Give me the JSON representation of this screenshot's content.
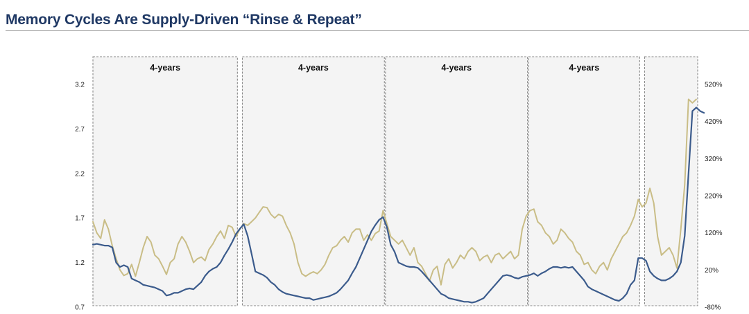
{
  "title": "Memory Cycles Are Supply-Driven “Rinse & Repeat”",
  "colors": {
    "title": "#1f3864",
    "navy_series": "#3b5b8c",
    "gold_series": "#c9bd86",
    "band_fill": "#f4f4f4",
    "band_border": "#8a8a8a"
  },
  "chart_data": {
    "type": "line",
    "title": "Memory Cycles Are Supply-Driven “Rinse & Repeat”",
    "xlabel": "",
    "ylabel": "",
    "grid": false,
    "legend": "none",
    "y_left": {
      "ticks": [
        "3.2",
        "2.7",
        "2.2",
        "1.7",
        "1.2",
        "0.7"
      ],
      "range": [
        0.7,
        3.2
      ]
    },
    "y_right": {
      "ticks": [
        "520%",
        "420%",
        "320%",
        "220%",
        "120%",
        "20%",
        "-80%"
      ],
      "range": [
        -80,
        520
      ]
    },
    "bands": [
      {
        "label": "4-years",
        "start": 0,
        "end": 37
      },
      {
        "label": "4-years",
        "start": 39,
        "end": 75
      },
      {
        "label": "4-years",
        "start": 76,
        "end": 112
      },
      {
        "label": "4-years",
        "start": 113,
        "end": 141
      },
      {
        "label": "",
        "start": 143,
        "end": 156
      }
    ],
    "x_count": 157,
    "series": [
      {
        "axis": "left",
        "color": "#3b5b8c",
        "values": [
          1.4,
          1.41,
          1.4,
          1.39,
          1.39,
          1.37,
          1.2,
          1.15,
          1.17,
          1.15,
          1.02,
          1.0,
          0.98,
          0.95,
          0.94,
          0.93,
          0.92,
          0.9,
          0.88,
          0.83,
          0.84,
          0.86,
          0.86,
          0.88,
          0.9,
          0.91,
          0.9,
          0.94,
          0.98,
          1.05,
          1.1,
          1.13,
          1.15,
          1.2,
          1.28,
          1.35,
          1.43,
          1.52,
          1.58,
          1.63,
          1.5,
          1.3,
          1.1,
          1.08,
          1.06,
          1.03,
          0.98,
          0.95,
          0.9,
          0.87,
          0.85,
          0.84,
          0.83,
          0.82,
          0.81,
          0.8,
          0.8,
          0.78,
          0.79,
          0.8,
          0.81,
          0.82,
          0.84,
          0.86,
          0.9,
          0.95,
          1.0,
          1.08,
          1.15,
          1.25,
          1.35,
          1.45,
          1.55,
          1.62,
          1.68,
          1.71,
          1.6,
          1.4,
          1.32,
          1.2,
          1.18,
          1.16,
          1.15,
          1.15,
          1.14,
          1.1,
          1.05,
          1.0,
          0.95,
          0.9,
          0.85,
          0.83,
          0.8,
          0.79,
          0.78,
          0.77,
          0.76,
          0.76,
          0.75,
          0.76,
          0.78,
          0.8,
          0.85,
          0.9,
          0.95,
          1.0,
          1.05,
          1.06,
          1.05,
          1.03,
          1.02,
          1.04,
          1.05,
          1.06,
          1.08,
          1.05,
          1.08,
          1.1,
          1.13,
          1.15,
          1.15,
          1.14,
          1.15,
          1.14,
          1.15,
          1.1,
          1.05,
          1.0,
          0.93,
          0.9,
          0.88,
          0.86,
          0.84,
          0.82,
          0.8,
          0.78,
          0.77,
          0.8,
          0.85,
          0.95,
          1.0,
          1.25,
          1.25,
          1.22,
          1.1,
          1.05,
          1.02,
          1.0,
          1.0,
          1.02,
          1.05,
          1.1,
          1.2,
          1.5,
          2.2,
          2.9,
          2.94,
          2.9,
          2.88
        ]
      },
      {
        "axis": "right",
        "color": "#c9bd86",
        "values": [
          150,
          120,
          105,
          155,
          130,
          85,
          50,
          20,
          5,
          10,
          35,
          3,
          40,
          80,
          110,
          95,
          60,
          50,
          30,
          8,
          40,
          50,
          90,
          110,
          95,
          70,
          40,
          50,
          55,
          45,
          75,
          90,
          110,
          125,
          105,
          140,
          135,
          110,
          130,
          145,
          140,
          150,
          160,
          175,
          190,
          188,
          170,
          160,
          170,
          165,
          140,
          120,
          90,
          40,
          10,
          3,
          10,
          15,
          10,
          20,
          35,
          60,
          80,
          85,
          100,
          110,
          95,
          120,
          130,
          130,
          100,
          115,
          100,
          118,
          125,
          180,
          145,
          110,
          100,
          90,
          100,
          80,
          60,
          80,
          40,
          30,
          10,
          -10,
          20,
          30,
          -20,
          35,
          50,
          25,
          40,
          60,
          50,
          70,
          80,
          70,
          45,
          55,
          60,
          40,
          60,
          65,
          50,
          60,
          70,
          50,
          60,
          130,
          165,
          180,
          184,
          150,
          140,
          120,
          110,
          90,
          100,
          130,
          120,
          105,
          95,
          70,
          60,
          35,
          40,
          20,
          10,
          30,
          40,
          20,
          50,
          70,
          90,
          110,
          120,
          140,
          165,
          210,
          190,
          200,
          240,
          200,
          110,
          60,
          70,
          80,
          60,
          25,
          130,
          250,
          480,
          470,
          480
        ]
      }
    ]
  }
}
